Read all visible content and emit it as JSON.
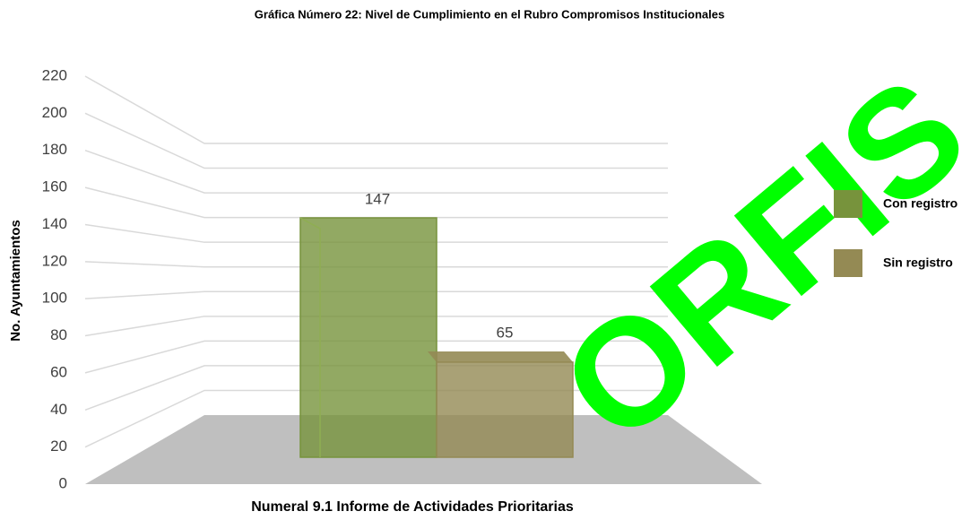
{
  "chart_data": {
    "type": "bar3d",
    "title": "Gráfica Número 22: Nivel de Cumplimiento en el Rubro Compromisos Institucionales",
    "y_label": "No. Ayuntamientos",
    "categories": [
      "Numeral 9.1 Informe de Actividades Prioritarias"
    ],
    "series": [
      {
        "name": "Con registro",
        "color": "#77933c",
        "values": [
          147
        ]
      },
      {
        "name": "Sin registro",
        "color": "#948a54",
        "values": [
          65
        ]
      }
    ],
    "ylim": [
      0,
      220
    ],
    "yticks": [
      0,
      20,
      40,
      60,
      80,
      100,
      120,
      140,
      160,
      180,
      200,
      220
    ],
    "grid": true,
    "legend": "right",
    "watermark": "ORFIS"
  }
}
